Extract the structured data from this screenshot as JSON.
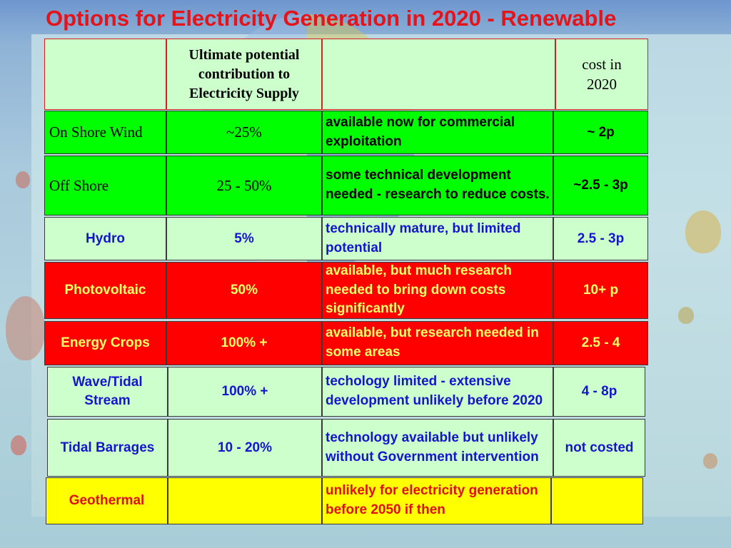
{
  "title": "Options for Electricity Generation in 2020 - Renewable",
  "header": {
    "col1": "",
    "col2": "Ultimate potential contribution to Electricity Supply",
    "col3": "",
    "col4": "cost in 2020"
  },
  "rows": [
    {
      "name": "On Shore Wind",
      "potential": "~25%",
      "status": "available now for commercial exploitation",
      "cost": "~ 2p"
    },
    {
      "name": "Off Shore",
      "potential": "25 - 50%",
      "status": "some technical development needed - research to reduce costs.",
      "cost": "~2.5 - 3p"
    },
    {
      "name": "Hydro",
      "potential": "5%",
      "status": "technically mature, but limited potential",
      "cost": "2.5 - 3p"
    },
    {
      "name": "Photovoltaic",
      "potential": "50%",
      "status": "available, but much research needed to bring down costs significantly",
      "cost": "10+ p"
    },
    {
      "name": "Energy Crops",
      "potential": "100% +",
      "status": "available, but research needed in some areas",
      "cost": "2.5 - 4"
    },
    {
      "name": "Wave/Tidal Stream",
      "potential": "100% +",
      "status": "techology limited - extensive development unlikely before 2020",
      "cost": "4 - 8p"
    },
    {
      "name": "Tidal Barrages",
      "potential": "10 - 20%",
      "status": "technology available but unlikely without Government intervention",
      "cost": "not costed"
    },
    {
      "name": "Geothermal",
      "potential": "",
      "status": "unlikely for electricity generation before 2050 if then",
      "cost": ""
    }
  ]
}
